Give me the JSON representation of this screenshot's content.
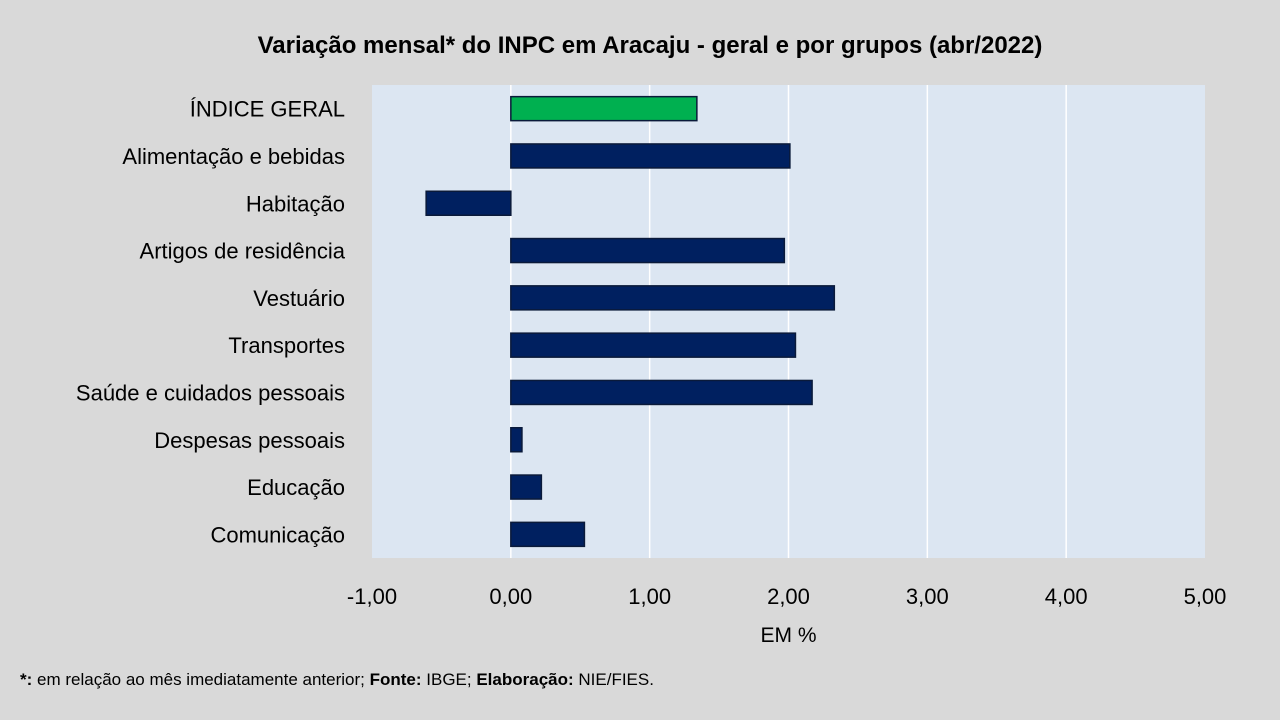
{
  "chart_data": {
    "type": "bar",
    "orientation": "horizontal",
    "title": "Variação  mensal*  do INPC em Aracaju  - geral e por grupos  (abr/2022)",
    "xlabel": "EM %",
    "ylabel": "",
    "categories": [
      "ÍNDICE GERAL",
      "Alimentação e bebidas",
      "Habitação",
      "Artigos de residência",
      "Vestuário",
      "Transportes",
      "Saúde e cuidados pessoais",
      "Despesas pessoais",
      "Educação",
      "Comunicação"
    ],
    "values": [
      1.34,
      2.01,
      -0.61,
      1.97,
      2.33,
      2.05,
      2.17,
      0.08,
      0.22,
      0.53
    ],
    "xlim": [
      -1,
      5
    ],
    "ticks": [
      "-1,00",
      "0,00",
      "1,00",
      "2,00",
      "3,00",
      "4,00",
      "5,00"
    ],
    "tick_values": [
      -1,
      0,
      1,
      2,
      3,
      4,
      5
    ],
    "grid": true,
    "colors": {
      "highlight": "#00b050",
      "bar": "#002060",
      "plot_bg": "#dce6f2",
      "grid": "#ffffff"
    }
  },
  "footer": {
    "star": "*:",
    "text1": " em relação ao mês imediatamente  anterior; ",
    "fonte_label": "Fonte:",
    "fonte": " IBGE; ",
    "elab_label": "Elaboração:",
    "elab": " NIE/FIES."
  }
}
